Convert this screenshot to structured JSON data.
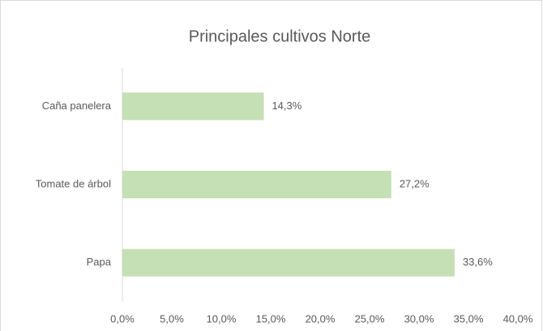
{
  "chart_data": {
    "type": "barh",
    "title": "Principales cultivos Norte",
    "categories": [
      "Caña panelera",
      "Tomate de árbol",
      "Papa"
    ],
    "values": [
      14.3,
      27.2,
      33.6
    ],
    "value_labels": [
      "14,3%",
      "27,2%",
      "33,6%"
    ],
    "color": "#c5e0b4",
    "xlim": [
      0,
      40
    ],
    "xticks": [
      {
        "value": 0,
        "label": "0,0%"
      },
      {
        "value": 5,
        "label": "5,0%"
      },
      {
        "value": 10,
        "label": "10,0%"
      },
      {
        "value": 15,
        "label": "15,0%"
      },
      {
        "value": 20,
        "label": "20,0%"
      },
      {
        "value": 25,
        "label": "25,0%"
      },
      {
        "value": 30,
        "label": "30,0%"
      },
      {
        "value": 35,
        "label": "35,0%"
      },
      {
        "value": 40,
        "label": "40,0%"
      }
    ],
    "grid": false
  }
}
